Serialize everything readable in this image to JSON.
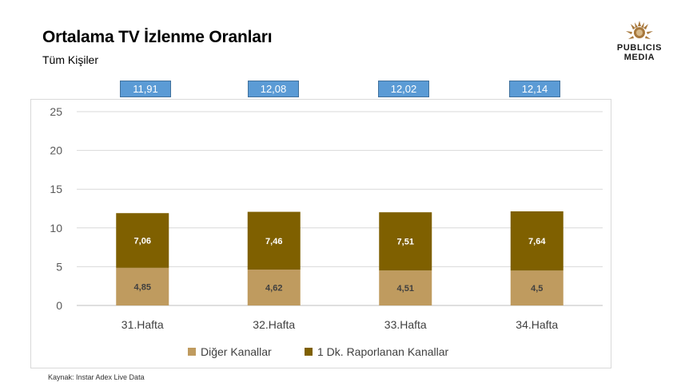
{
  "header": {
    "title": "Ortalama TV İzlenme Oranları",
    "subtitle": "Tüm Kişiler"
  },
  "logo": {
    "line1": "PUBLICIS",
    "line2": "MEDIA"
  },
  "totals": [
    "11,91",
    "12,08",
    "12,02",
    "12,14"
  ],
  "source": "Kaynak: Instar  Adex Live Data",
  "colors": {
    "accent": "#5b9bd5",
    "series1": "#bf9b5f",
    "series2": "#7f6000"
  },
  "chart_data": {
    "type": "bar",
    "stacked": true,
    "categories": [
      "31.Hafta",
      "32.Hafta",
      "33.Hafta",
      "34.Hafta"
    ],
    "series": [
      {
        "name": "Diğer Kanallar",
        "values": [
          4.85,
          4.62,
          4.51,
          4.5
        ],
        "labels": [
          "4,85",
          "4,62",
          "4,51",
          "4,5"
        ],
        "color": "#bf9b5f",
        "label_color": "#404040"
      },
      {
        "name": "1 Dk. Raporlanan Kanallar",
        "values": [
          7.06,
          7.46,
          7.51,
          7.64
        ],
        "labels": [
          "7,06",
          "7,46",
          "7,51",
          "7,64"
        ],
        "color": "#7f6000",
        "label_color": "#ffffff"
      }
    ],
    "ylim": [
      0,
      25
    ],
    "yticks": [
      "0",
      "5",
      "10",
      "15",
      "20",
      "25"
    ],
    "grid": true,
    "legend": "bottom"
  }
}
